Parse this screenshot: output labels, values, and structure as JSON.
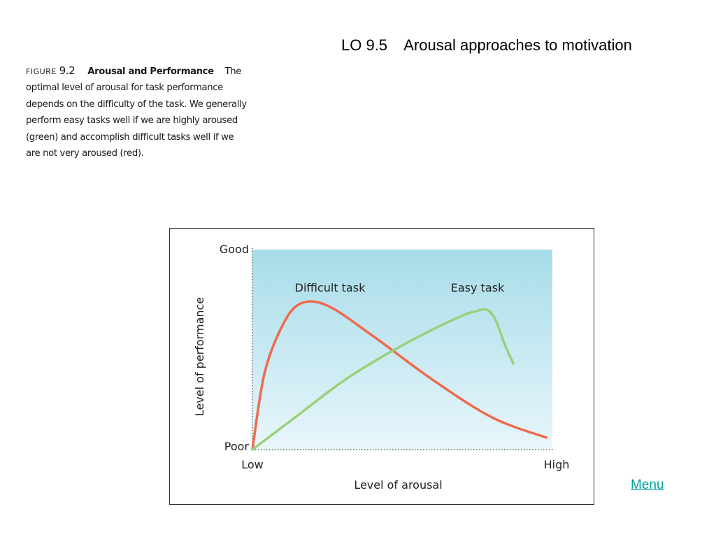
{
  "slide": {
    "title": "LO 9.5    Arousal approaches to motivation",
    "menu_label": "Menu"
  },
  "caption": {
    "figure_word": "FIGURE",
    "figure_number": "9.2",
    "heading": "Arousal and Performance",
    "text": "The optimal level of arousal for task performance depends on the difficulty of the task. We generally perform easy tasks well if we are highly aroused (green) and accomplish difficult tasks well if we are not very aroused (red)."
  },
  "chart_data": {
    "type": "line",
    "xlabel": "Level of arousal",
    "ylabel": "Level of performance",
    "x_ticks": [
      "Low",
      "High"
    ],
    "y_ticks": [
      "Poor",
      "Good"
    ],
    "xlim": [
      0,
      1
    ],
    "ylim": [
      0,
      1
    ],
    "grid": false,
    "series": [
      {
        "name": "Difficult task",
        "color": "#ef6a4e",
        "points": [
          [
            0.0,
            0.0
          ],
          [
            0.04,
            0.38
          ],
          [
            0.1,
            0.62
          ],
          [
            0.16,
            0.73
          ],
          [
            0.25,
            0.72
          ],
          [
            0.4,
            0.57
          ],
          [
            0.6,
            0.35
          ],
          [
            0.8,
            0.16
          ],
          [
            0.98,
            0.06
          ]
        ]
      },
      {
        "name": "Easy task",
        "color": "#9bd07a",
        "points": [
          [
            0.0,
            0.0
          ],
          [
            0.15,
            0.17
          ],
          [
            0.3,
            0.34
          ],
          [
            0.45,
            0.48
          ],
          [
            0.6,
            0.6
          ],
          [
            0.7,
            0.67
          ],
          [
            0.74,
            0.69
          ],
          [
            0.78,
            0.7
          ],
          [
            0.81,
            0.65
          ],
          [
            0.84,
            0.53
          ],
          [
            0.87,
            0.43
          ]
        ]
      }
    ]
  }
}
